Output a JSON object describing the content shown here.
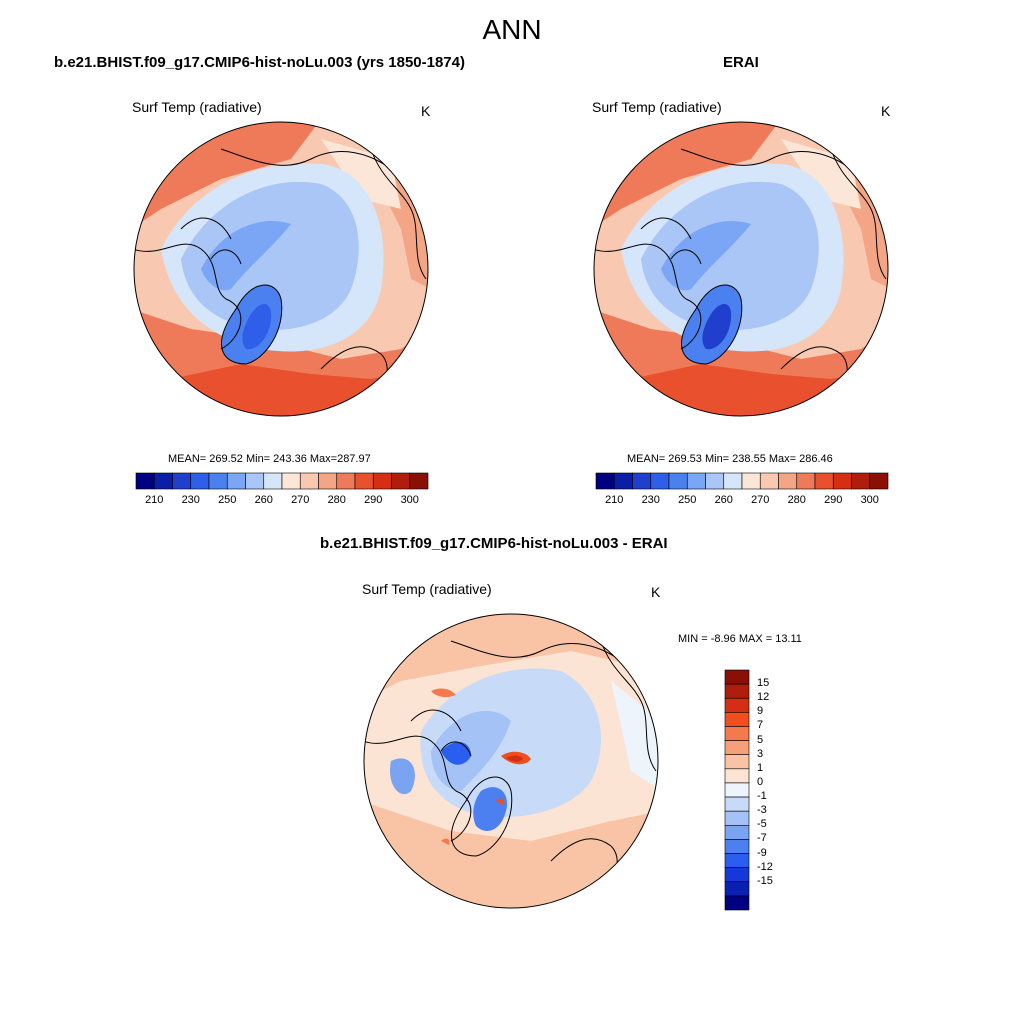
{
  "season": "ANN",
  "panels": [
    {
      "title": "b.e21.BHIST.f09_g17.CMIP6-hist-noLu.003 (yrs 1850-1874)",
      "variable": "Surf Temp (radiative)",
      "units": "K",
      "stats": "MEAN= 269.52  Min= 243.36  Max=287.97"
    },
    {
      "title": "ERAI",
      "variable": "Surf Temp (radiative)",
      "units": "K",
      "stats": "MEAN= 269.53  Min= 238.55  Max= 286.46"
    },
    {
      "title": "b.e21.BHIST.f09_g17.CMIP6-hist-noLu.003 - ERAI",
      "variable": "Surf Temp (radiative)",
      "units": "K",
      "stats": "MIN =  -8.96 MAX =  13.11"
    }
  ],
  "abs_colorbar": {
    "colors": [
      "#000080",
      "#0a1fa8",
      "#1f3fcc",
      "#2f5ee8",
      "#4a80f0",
      "#7aa6f5",
      "#a9c6f7",
      "#d6e6fa",
      "#fbe6d8",
      "#f8c9b0",
      "#f4a585",
      "#ef7a5a",
      "#e9502e",
      "#d52e14",
      "#b01d0c",
      "#8a0f05"
    ],
    "tick_labels": [
      "210",
      "230",
      "250",
      "260",
      "270",
      "280",
      "290",
      "300"
    ]
  },
  "diff_colorbar": {
    "colors": [
      "#8a0f05",
      "#b01d0c",
      "#d52e14",
      "#f04e1c",
      "#f47a4e",
      "#f6a07a",
      "#f9c4a6",
      "#fce4d4",
      "#eef4fc",
      "#c7daf8",
      "#a4c2f5",
      "#7aa3f2",
      "#4c7ff0",
      "#2a5ef0",
      "#1638d8",
      "#0a20b0",
      "#000080"
    ],
    "tick_labels": [
      "15",
      "12",
      "9",
      "7",
      "5",
      "3",
      "1",
      "0",
      "-1",
      "-3",
      "-5",
      "-7",
      "-9",
      "-12",
      "-15"
    ]
  }
}
